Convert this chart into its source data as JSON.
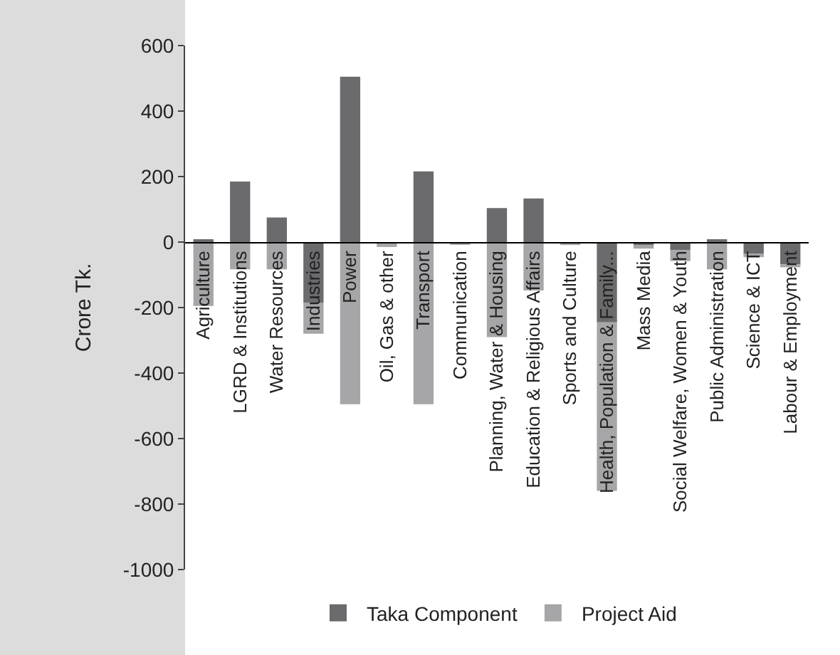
{
  "chart_data": {
    "type": "bar",
    "stacked": true,
    "ylabel": "Crore Tk.",
    "categories": [
      "Agriculture",
      "LGRD & Institutions",
      "Water Resources",
      "Industries",
      "Power",
      "Oil, Gas & other",
      "Transport",
      "Communication",
      "Planning, Water & Housing",
      "Education & Religious Affairs",
      "Sports and Culture",
      "Health, Population & Family...",
      "Mass Media",
      "Social Welfare, Women & Youth",
      "Public Administration",
      "Science & ICT",
      "Labour & Employment"
    ],
    "series": [
      {
        "name": "Taka Component",
        "color": "#6b6b6e",
        "values": [
          8,
          185,
          75,
          -185,
          505,
          null,
          216,
          null,
          104,
          133,
          null,
          -245,
          -10,
          -25,
          7,
          -39,
          -68
        ]
      },
      {
        "name": "Project Aid",
        "color": "#a6a6a8",
        "values": [
          -195,
          -83,
          -83,
          -95,
          -495,
          -15,
          -495,
          -8,
          -290,
          -148,
          -9,
          -515,
          -10,
          -33,
          -83,
          -7,
          -9
        ]
      }
    ],
    "ylim": [
      -1000,
      600
    ],
    "yticks": [
      -1000,
      -800,
      -600,
      -400,
      -200,
      0,
      200,
      400,
      600
    ],
    "legend": "bottom"
  }
}
